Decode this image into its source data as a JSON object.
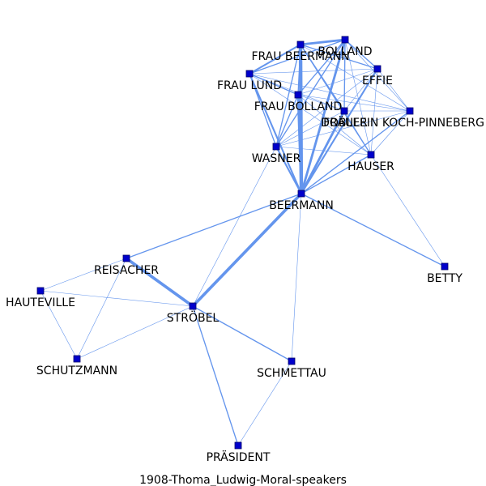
{
  "title": "1908-Thoma_Ludwig-Moral-speakers",
  "colors": {
    "edge": "#6495ed",
    "node_fill": "#0000cc",
    "node_stroke": "#000066",
    "label": "#000000",
    "background": "#ffffff"
  },
  "node_shape": "square",
  "nodes": [
    {
      "id": "BOLLAND",
      "label": "BOLLAND"
    },
    {
      "id": "FRAU_BEERMANN",
      "label": "FRAU BEERMANN"
    },
    {
      "id": "EFFIE",
      "label": "EFFIE"
    },
    {
      "id": "FRAU_LUND",
      "label": "FRAU LUND"
    },
    {
      "id": "FRAU_BOLLAND",
      "label": "FRAU BOLLAND"
    },
    {
      "id": "DOBLER",
      "label": "DOBLER"
    },
    {
      "id": "FRAEULEIN",
      "label": "FRÄULEIN KOCH-PINNEBERG"
    },
    {
      "id": "WASNER",
      "label": "WASNER"
    },
    {
      "id": "HAUSER",
      "label": "HAUSER"
    },
    {
      "id": "BEERMANN",
      "label": "BEERMANN"
    },
    {
      "id": "REISACHER",
      "label": "REISACHER"
    },
    {
      "id": "BETTY",
      "label": "BETTY"
    },
    {
      "id": "HAUTEVILLE",
      "label": "HAUTEVILLE"
    },
    {
      "id": "STROBEL",
      "label": "STRÖBEL"
    },
    {
      "id": "SCHUTZMANN",
      "label": "SCHUTZMANN"
    },
    {
      "id": "SCHMETTAU",
      "label": "SCHMETTAU"
    },
    {
      "id": "PRAESIDENT",
      "label": "PRÄSIDENT"
    }
  ],
  "edges": [
    {
      "source": "BEERMANN",
      "target": "STROBEL",
      "weight": 5
    },
    {
      "source": "BEERMANN",
      "target": "FRAU_BEERMANN",
      "weight": 6
    },
    {
      "source": "BEERMANN",
      "target": "FRAU_BOLLAND",
      "weight": 4
    },
    {
      "source": "BEERMANN",
      "target": "BOLLAND",
      "weight": 4
    },
    {
      "source": "BEERMANN",
      "target": "DOBLER",
      "weight": 4
    },
    {
      "source": "BEERMANN",
      "target": "FRAU_LUND",
      "weight": 3
    },
    {
      "source": "BEERMANN",
      "target": "EFFIE",
      "weight": 3
    },
    {
      "source": "BEERMANN",
      "target": "WASNER",
      "weight": 3
    },
    {
      "source": "BEERMANN",
      "target": "HAUSER",
      "weight": 2
    },
    {
      "source": "BEERMANN",
      "target": "FRAEULEIN",
      "weight": 2
    },
    {
      "source": "BEERMANN",
      "target": "REISACHER",
      "weight": 2
    },
    {
      "source": "BEERMANN",
      "target": "BETTY",
      "weight": 2
    },
    {
      "source": "BEERMANN",
      "target": "SCHMETTAU",
      "weight": 1
    },
    {
      "source": "REISACHER",
      "target": "STROBEL",
      "weight": 5
    },
    {
      "source": "REISACHER",
      "target": "HAUTEVILLE",
      "weight": 1
    },
    {
      "source": "REISACHER",
      "target": "SCHUTZMANN",
      "weight": 1
    },
    {
      "source": "HAUTEVILLE",
      "target": "STROBEL",
      "weight": 1
    },
    {
      "source": "HAUTEVILLE",
      "target": "SCHUTZMANN",
      "weight": 1
    },
    {
      "source": "SCHUTZMANN",
      "target": "STROBEL",
      "weight": 1
    },
    {
      "source": "STROBEL",
      "target": "SCHMETTAU",
      "weight": 2
    },
    {
      "source": "STROBEL",
      "target": "PRAESIDENT",
      "weight": 2
    },
    {
      "source": "STROBEL",
      "target": "WASNER",
      "weight": 1
    },
    {
      "source": "SCHMETTAU",
      "target": "PRAESIDENT",
      "weight": 1
    },
    {
      "source": "HAUSER",
      "target": "BETTY",
      "weight": 1
    },
    {
      "source": "FRAU_BEERMANN",
      "target": "BOLLAND",
      "weight": 4
    },
    {
      "source": "FRAU_BEERMANN",
      "target": "FRAU_LUND",
      "weight": 3
    },
    {
      "source": "FRAU_BEERMANN",
      "target": "EFFIE",
      "weight": 2
    },
    {
      "source": "FRAU_BEERMANN",
      "target": "FRAU_BOLLAND",
      "weight": 2
    },
    {
      "source": "FRAU_BEERMANN",
      "target": "DOBLER",
      "weight": 2
    },
    {
      "source": "FRAU_BEERMANN",
      "target": "WASNER",
      "weight": 2
    },
    {
      "source": "FRAU_BEERMANN",
      "target": "HAUSER",
      "weight": 2
    },
    {
      "source": "FRAU_BEERMANN",
      "target": "FRAEULEIN",
      "weight": 1
    },
    {
      "source": "BOLLAND",
      "target": "FRAU_LUND",
      "weight": 2
    },
    {
      "source": "BOLLAND",
      "target": "EFFIE",
      "weight": 2
    },
    {
      "source": "BOLLAND",
      "target": "FRAU_BOLLAND",
      "weight": 2
    },
    {
      "source": "BOLLAND",
      "target": "DOBLER",
      "weight": 2
    },
    {
      "source": "BOLLAND",
      "target": "WASNER",
      "weight": 2
    },
    {
      "source": "BOLLAND",
      "target": "HAUSER",
      "weight": 1
    },
    {
      "source": "BOLLAND",
      "target": "FRAEULEIN",
      "weight": 1
    },
    {
      "source": "FRAU_LUND",
      "target": "FRAU_BOLLAND",
      "weight": 2
    },
    {
      "source": "FRAU_LUND",
      "target": "WASNER",
      "weight": 2
    },
    {
      "source": "FRAU_LUND",
      "target": "EFFIE",
      "weight": 1
    },
    {
      "source": "FRAU_LUND",
      "target": "DOBLER",
      "weight": 1
    },
    {
      "source": "FRAU_LUND",
      "target": "HAUSER",
      "weight": 1
    },
    {
      "source": "FRAU_LUND",
      "target": "FRAEULEIN",
      "weight": 1
    },
    {
      "source": "EFFIE",
      "target": "FRAU_BOLLAND",
      "weight": 1
    },
    {
      "source": "EFFIE",
      "target": "DOBLER",
      "weight": 1
    },
    {
      "source": "EFFIE",
      "target": "WASNER",
      "weight": 1
    },
    {
      "source": "EFFIE",
      "target": "HAUSER",
      "weight": 1
    },
    {
      "source": "EFFIE",
      "target": "FRAEULEIN",
      "weight": 1
    },
    {
      "source": "FRAU_BOLLAND",
      "target": "DOBLER",
      "weight": 1
    },
    {
      "source": "FRAU_BOLLAND",
      "target": "WASNER",
      "weight": 2
    },
    {
      "source": "FRAU_BOLLAND",
      "target": "HAUSER",
      "weight": 1
    },
    {
      "source": "FRAU_BOLLAND",
      "target": "FRAEULEIN",
      "weight": 1
    },
    {
      "source": "DOBLER",
      "target": "WASNER",
      "weight": 1
    },
    {
      "source": "DOBLER",
      "target": "HAUSER",
      "weight": 1
    },
    {
      "source": "DOBLER",
      "target": "FRAEULEIN",
      "weight": 1
    },
    {
      "source": "WASNER",
      "target": "HAUSER",
      "weight": 1
    },
    {
      "source": "WASNER",
      "target": "FRAEULEIN",
      "weight": 1
    },
    {
      "source": "HAUSER",
      "target": "FRAEULEIN",
      "weight": 1
    }
  ]
}
